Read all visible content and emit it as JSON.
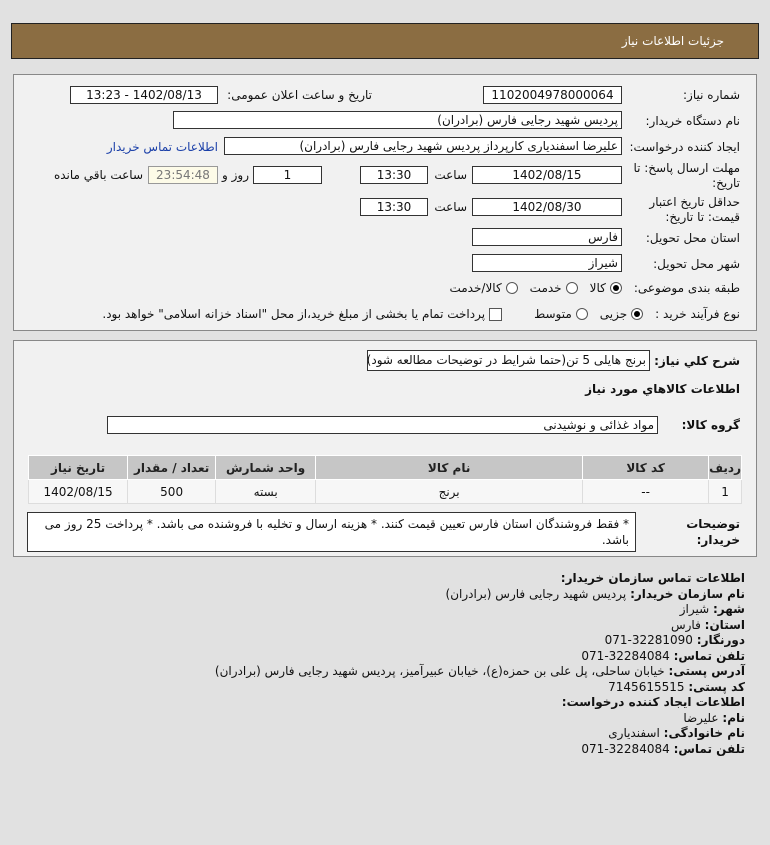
{
  "header": {
    "title": "جزئیات اطلاعات نیاز"
  },
  "form": {
    "need_number_label": "شماره نیاز:",
    "need_number": "1102004978000064",
    "announce_label": "تاریخ و ساعت اعلان عمومی:",
    "announce_value": "1402/08/13 - 13:23",
    "buyer_label": "نام دستگاه خریدار:",
    "buyer": "پردیس شهید رجایی فارس (برادران)",
    "creator_label": "ایجاد کننده درخواست:",
    "creator": "علیرضا اسفندیاری کارپرداز پردیس شهید رجایی فارس (برادران)",
    "contact_link": "اطلاعات تماس خریدار",
    "deadline_label": "مهلت ارسال پاسخ: تا تاریخ:",
    "deadline_date": "1402/08/15",
    "time_label": "ساعت",
    "deadline_time": "13:30",
    "days": "1",
    "days_label": "روز و",
    "remaining": "23:54:48",
    "remaining_label": "ساعت باقي مانده",
    "validity_label": "حداقل تاریخ اعتبار قیمت: تا تاریخ:",
    "validity_date": "1402/08/30",
    "validity_time": "13:30",
    "province_label": "استان محل تحویل:",
    "province": "فارس",
    "city_label": "شهر محل تحویل:",
    "city": "شیراز",
    "category_label": "طبقه بندی موضوعی:",
    "category_options": [
      "کالا",
      "خدمت",
      "کالا/خدمت"
    ],
    "category_selected": "کالا",
    "process_label": "نوع فرآیند خرید :",
    "process_options": [
      "جزیی",
      "متوسط"
    ],
    "process_selected": "جزیی",
    "payment_note": "پرداخت تمام یا بخشی از مبلغ خرید،از محل \"اسناد خزانه اسلامی\" خواهد بود.",
    "payment_checked": false
  },
  "details": {
    "summary_label": "شرح کلي نياز:",
    "summary": "برنج هایلی 5 تن(حتما شرایط در توضیحات مطالعه شود)",
    "goods_title": "اطلاعات كالاهاي مورد نياز",
    "group_label": "گروه کالا:",
    "group": "مواد غذائی و نوشیدنی",
    "table": {
      "headers": [
        "ردیف",
        "کد کالا",
        "نام کالا",
        "واحد شمارش",
        "تعداد / مقدار",
        "تاریخ نیاز"
      ],
      "rows": [
        [
          "1",
          "--",
          "برنج",
          "بسته",
          "500",
          "1402/08/15"
        ]
      ]
    },
    "notes_label": "توضیحات خریدار:",
    "notes": "* فقط فروشندگان استان فارس تعیین قیمت کنند. * هزینه ارسال و تخلیه با فروشنده می باشد. * پرداخت 25 روز می باشد."
  },
  "contact": {
    "title": "اطلاعات تماس سازمان خریدار:",
    "org_label": "نام سازمان خریدار:",
    "org": "پردیس شهید رجایی فارس (برادران)",
    "city_label": "شهر:",
    "city": "شیراز",
    "province_label": "استان:",
    "province": "فارس",
    "fax_label": "دورنگار:",
    "fax": "32281090-071",
    "phone_label": "تلفن تماس:",
    "phone": "32284084-071",
    "address_label": "آدرس پستی:",
    "address": "خیابان ساحلی، پل علی بن حمزه(ع)، خیابان عبیرآمیز، پردیس شهید رجایی فارس (برادران)",
    "postal_label": "کد پستی:",
    "postal": "7145615515",
    "creator_title": "اطلاعات ایجاد کننده درخواست:",
    "name_label": "نام:",
    "name": "علیرضا",
    "family_label": "نام خانوادگی:",
    "family": "اسفندیاری",
    "creator_phone_label": "تلفن تماس:",
    "creator_phone": "32284084-071"
  },
  "colors": {
    "header": "#8b6d42",
    "link": "#1a3fa8",
    "remaining_bg": "#fdfbe8"
  }
}
